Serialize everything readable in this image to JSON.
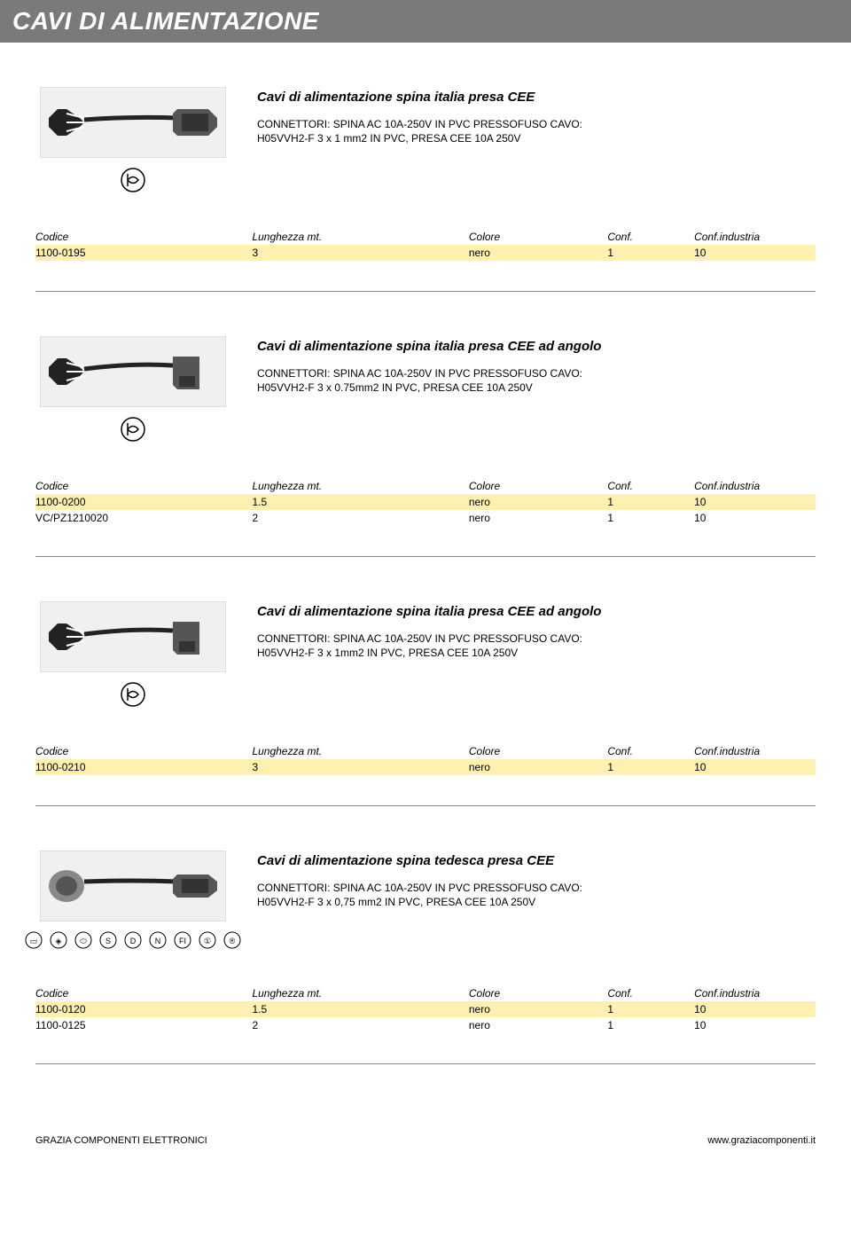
{
  "colors": {
    "header_bg": "#7a7a7a",
    "header_text": "#ffffff",
    "row_highlight": "#fdf0b0",
    "divider": "#888888",
    "page_bg": "#ffffff"
  },
  "header": {
    "title": "CAVI DI ALIMENTAZIONE"
  },
  "table_headers": {
    "codice": "Codice",
    "lunghezza": "Lunghezza mt.",
    "colore": "Colore",
    "conf": "Conf.",
    "conf_industria": "Conf.industria"
  },
  "sections": [
    {
      "title": "Cavi di alimentazione spina italia presa CEE",
      "desc1": "CONNETTORI: SPINA AC 10A-250V IN PVC PRESSOFUSO CAVO:",
      "desc2": "H05VVH2-F 3 x 1 mm2 IN PVC, PRESA CEE 10A 250V",
      "cert_style": "single",
      "image_type": "plug_straight",
      "rows": [
        {
          "codice": "1100-0195",
          "lunghezza": "3",
          "colore": "nero",
          "conf": "1",
          "conf_industria": "10",
          "hl": true
        }
      ]
    },
    {
      "title": "Cavi di alimentazione spina italia presa CEE ad angolo",
      "desc1": "CONNETTORI: SPINA AC 10A-250V IN PVC PRESSOFUSO CAVO:",
      "desc2": "H05VVH2-F 3 x 0.75mm2 IN PVC, PRESA CEE 10A 250V",
      "cert_style": "single",
      "image_type": "plug_angle",
      "rows": [
        {
          "codice": "1100-0200",
          "lunghezza": "1.5",
          "colore": "nero",
          "conf": "1",
          "conf_industria": "10",
          "hl": true
        },
        {
          "codice": "VC/PZ1210020",
          "lunghezza": "2",
          "colore": "nero",
          "conf": "1",
          "conf_industria": "10",
          "hl": false
        }
      ]
    },
    {
      "title": "Cavi di alimentazione spina italia presa CEE ad angolo",
      "desc1": "CONNETTORI: SPINA AC 10A-250V IN PVC PRESSOFUSO CAVO:",
      "desc2": "H05VVH2-F 3 x 1mm2 IN PVC, PRESA CEE 10A 250V",
      "cert_style": "single",
      "image_type": "plug_angle",
      "rows": [
        {
          "codice": "1100-0210",
          "lunghezza": "3",
          "colore": "nero",
          "conf": "1",
          "conf_industria": "10",
          "hl": true
        }
      ]
    },
    {
      "title": "Cavi di alimentazione spina tedesca presa CEE",
      "desc1": "CONNETTORI: SPINA AC 10A-250V IN PVC PRESSOFUSO CAVO:",
      "desc2": "H05VVH2-F 3 x 0,75 mm2 IN PVC, PRESA CEE 10A 250V",
      "cert_style": "multi",
      "image_type": "plug_german",
      "rows": [
        {
          "codice": "1100-0120",
          "lunghezza": "1.5",
          "colore": "nero",
          "conf": "1",
          "conf_industria": "10",
          "hl": true
        },
        {
          "codice": "1100-0125",
          "lunghezza": "2",
          "colore": "nero",
          "conf": "1",
          "conf_industria": "10",
          "hl": false
        }
      ]
    }
  ],
  "footer": {
    "left": "GRAZIA COMPONENTI ELETTRONICI",
    "right": "www.graziacomponenti.it"
  }
}
